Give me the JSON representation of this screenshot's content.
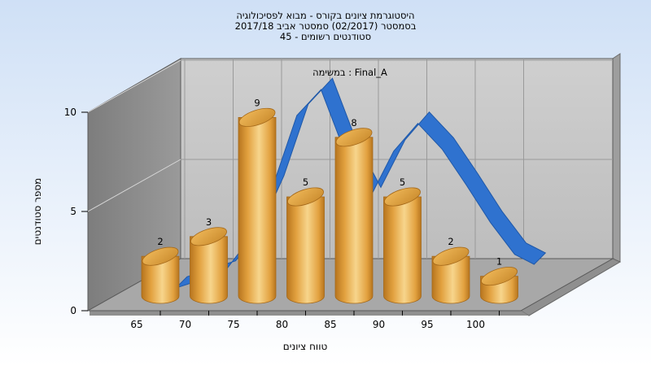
{
  "chart_data": {
    "type": "bar",
    "title_lines": [
      "היסטוגרמת ציונים בקורס - מבוא לפסיכולוגיה",
      "בסמסטר  (02/2017)  סמסטר אביב 2017/18",
      "סטודנטים רשומים - 45"
    ],
    "subtitle": "במשימה : Final_A",
    "xlabel": "טווח ציונים",
    "ylabel": "מספר סטודנטים",
    "x_ticks": [
      "65",
      "70",
      "75",
      "80",
      "85",
      "90",
      "95",
      "100"
    ],
    "y_ticks": [
      "0",
      "5",
      "10"
    ],
    "ylim": [
      0,
      10
    ],
    "bars": [
      {
        "x": 65,
        "value": 2,
        "label": "2"
      },
      {
        "x": 70,
        "value": 3,
        "label": "3"
      },
      {
        "x": 75,
        "value": 9,
        "label": "9"
      },
      {
        "x": 80,
        "value": 5,
        "label": "5"
      },
      {
        "x": 85,
        "value": 8,
        "label": "8"
      },
      {
        "x": 90,
        "value": 5,
        "label": "5"
      },
      {
        "x": 95,
        "value": 2,
        "label": "2"
      },
      {
        "x": 100,
        "value": 1,
        "label": "1"
      }
    ],
    "curve": {
      "x": [
        65,
        70,
        72.5,
        75,
        77.5,
        80,
        82.5,
        85,
        87.5,
        90,
        92.5,
        95,
        97.5,
        100,
        102
      ],
      "y": [
        0.4,
        1.2,
        2.8,
        5.5,
        9.1,
        10.4,
        7.2,
        4.9,
        7.3,
        8.7,
        7.4,
        5.6,
        3.7,
        2.1,
        1.6
      ]
    },
    "grid": true,
    "legend": "none",
    "colors": {
      "bar_light": "#f7d58c",
      "bar_mid": "#e2a13f",
      "bar_dark": "#b7751e",
      "curve": "#2f72cf",
      "back_wall": "#c8c8c8",
      "side_wall": "#8c8c8c",
      "floor": "#a8a8a8"
    }
  }
}
